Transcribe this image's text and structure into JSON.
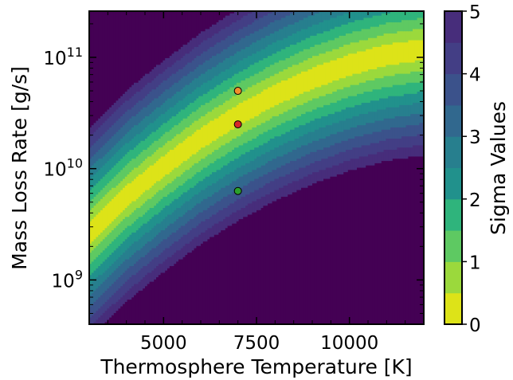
{
  "chart_data": {
    "type": "heatmap",
    "subtype": "filled-contour",
    "title": "",
    "xlabel": "Thermosphere Temperature [K]",
    "ylabel": "Mass Loss Rate [g/s]",
    "xscale": "linear",
    "yscale": "log",
    "xlim": [
      3000,
      12000
    ],
    "ylim": [
      400000000.0,
      260000000000.0
    ],
    "x_ticks": [
      5000,
      7500,
      10000
    ],
    "x_tick_labels": [
      "5000",
      "7500",
      "10000"
    ],
    "y_ticks": [
      1000000000.0,
      10000000000.0,
      100000000000.0
    ],
    "y_tick_labels": [
      {
        "base": "10",
        "exp": "9"
      },
      {
        "base": "10",
        "exp": "10"
      },
      {
        "base": "10",
        "exp": "11"
      }
    ],
    "colorbar": {
      "label": "Sigma Values",
      "range": [
        0,
        5
      ],
      "ticks": [
        0,
        1,
        2,
        3,
        4,
        5
      ],
      "tick_labels": [
        "0",
        "1",
        "2",
        "3",
        "4",
        "5"
      ],
      "levels": [
        0,
        0.5,
        1,
        1.5,
        2,
        2.5,
        3,
        3.5,
        4,
        4.5,
        5
      ],
      "colormap": "viridis_r",
      "colors": [
        "#dde318",
        "#9bd93c",
        "#5ec962",
        "#2fb47c",
        "#21918c",
        "#277f8e",
        "#31688e",
        "#3b528b",
        "#433e85",
        "#472d7b",
        "#440154"
      ]
    },
    "ridge": {
      "description_values": "minimum-sigma ridge (best fit) log10 mass loss rate vs temperature",
      "x": [
        3000,
        4000,
        5000,
        6000,
        7000,
        8000,
        9000,
        10000,
        11000,
        12000
      ],
      "log10_y": [
        9.42,
        9.75,
        10.02,
        10.27,
        10.48,
        10.66,
        10.81,
        10.93,
        11.02,
        11.07
      ],
      "width_dex_per_sigma": 0.19
    },
    "points": [
      {
        "x": 7000,
        "y": 50000000000.0,
        "color": "#f28e2b"
      },
      {
        "x": 7000,
        "y": 25000000000.0,
        "color": "#d62728"
      },
      {
        "x": 7000,
        "y": 6300000000.0,
        "color": "#2ca02c"
      }
    ]
  }
}
